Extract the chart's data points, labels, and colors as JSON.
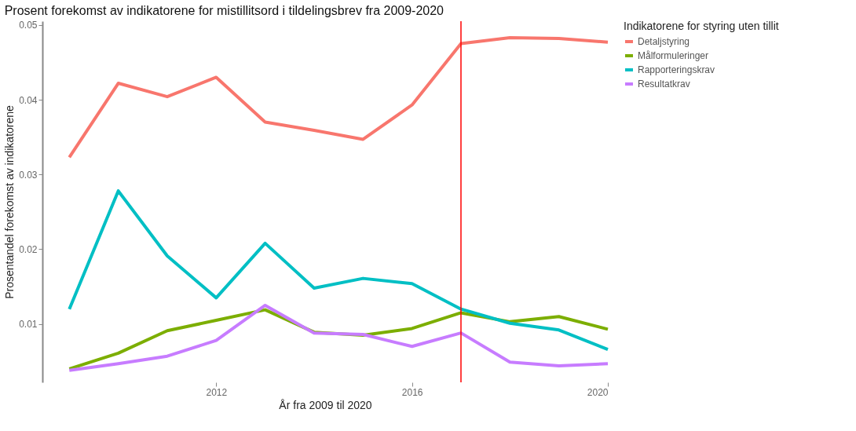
{
  "chart_data": {
    "type": "line",
    "title": "Prosent forekomst av indikatorene for mistillitsord i tildelingsbrev fra 2009-2020",
    "xlabel": "År fra 2009 til 2020",
    "ylabel": "Prosentandel forekomst av indikatorene",
    "legend_title": "Indikatorene for styring uten tillit",
    "x": [
      2009,
      2010,
      2011,
      2012,
      2013,
      2014,
      2015,
      2016,
      2017,
      2018,
      2019,
      2020
    ],
    "series": [
      {
        "name": "Detaljstyring",
        "color": "#f8766d",
        "values": [
          0.0323,
          0.0422,
          0.0404,
          0.043,
          0.037,
          0.0359,
          0.0347,
          0.0393,
          0.0475,
          0.0483,
          0.0482,
          0.0477
        ]
      },
      {
        "name": "Målformuleringer",
        "color": "#7cae00",
        "values": [
          0.004,
          0.0061,
          0.0091,
          0.0105,
          0.0119,
          0.0089,
          0.0085,
          0.0094,
          0.0115,
          0.0103,
          0.011,
          0.0093
        ]
      },
      {
        "name": "Rapporteringskrav",
        "color": "#00bfc4",
        "values": [
          0.012,
          0.0278,
          0.0191,
          0.0135,
          0.0208,
          0.0148,
          0.0161,
          0.0154,
          0.012,
          0.0101,
          0.0092,
          0.0066
        ]
      },
      {
        "name": "Resultatkrav",
        "color": "#c77cff",
        "values": [
          0.0038,
          0.0047,
          0.0057,
          0.0078,
          0.0125,
          0.0088,
          0.0086,
          0.007,
          0.0088,
          0.0049,
          0.0044,
          0.0047
        ]
      }
    ],
    "xlim": [
      2008.45,
      2020
    ],
    "xticks": [
      2012,
      2016,
      2020
    ],
    "ylim": [
      0.0022,
      0.0505
    ],
    "yticks": [
      0.01,
      0.02,
      0.03,
      0.04,
      0.05
    ],
    "ref_lines": [
      {
        "axis": "x",
        "value": 2017,
        "label": null,
        "color": "#ff0000"
      }
    ],
    "grid": false,
    "legend": "right",
    "line_style": "solid",
    "marker": "none"
  }
}
